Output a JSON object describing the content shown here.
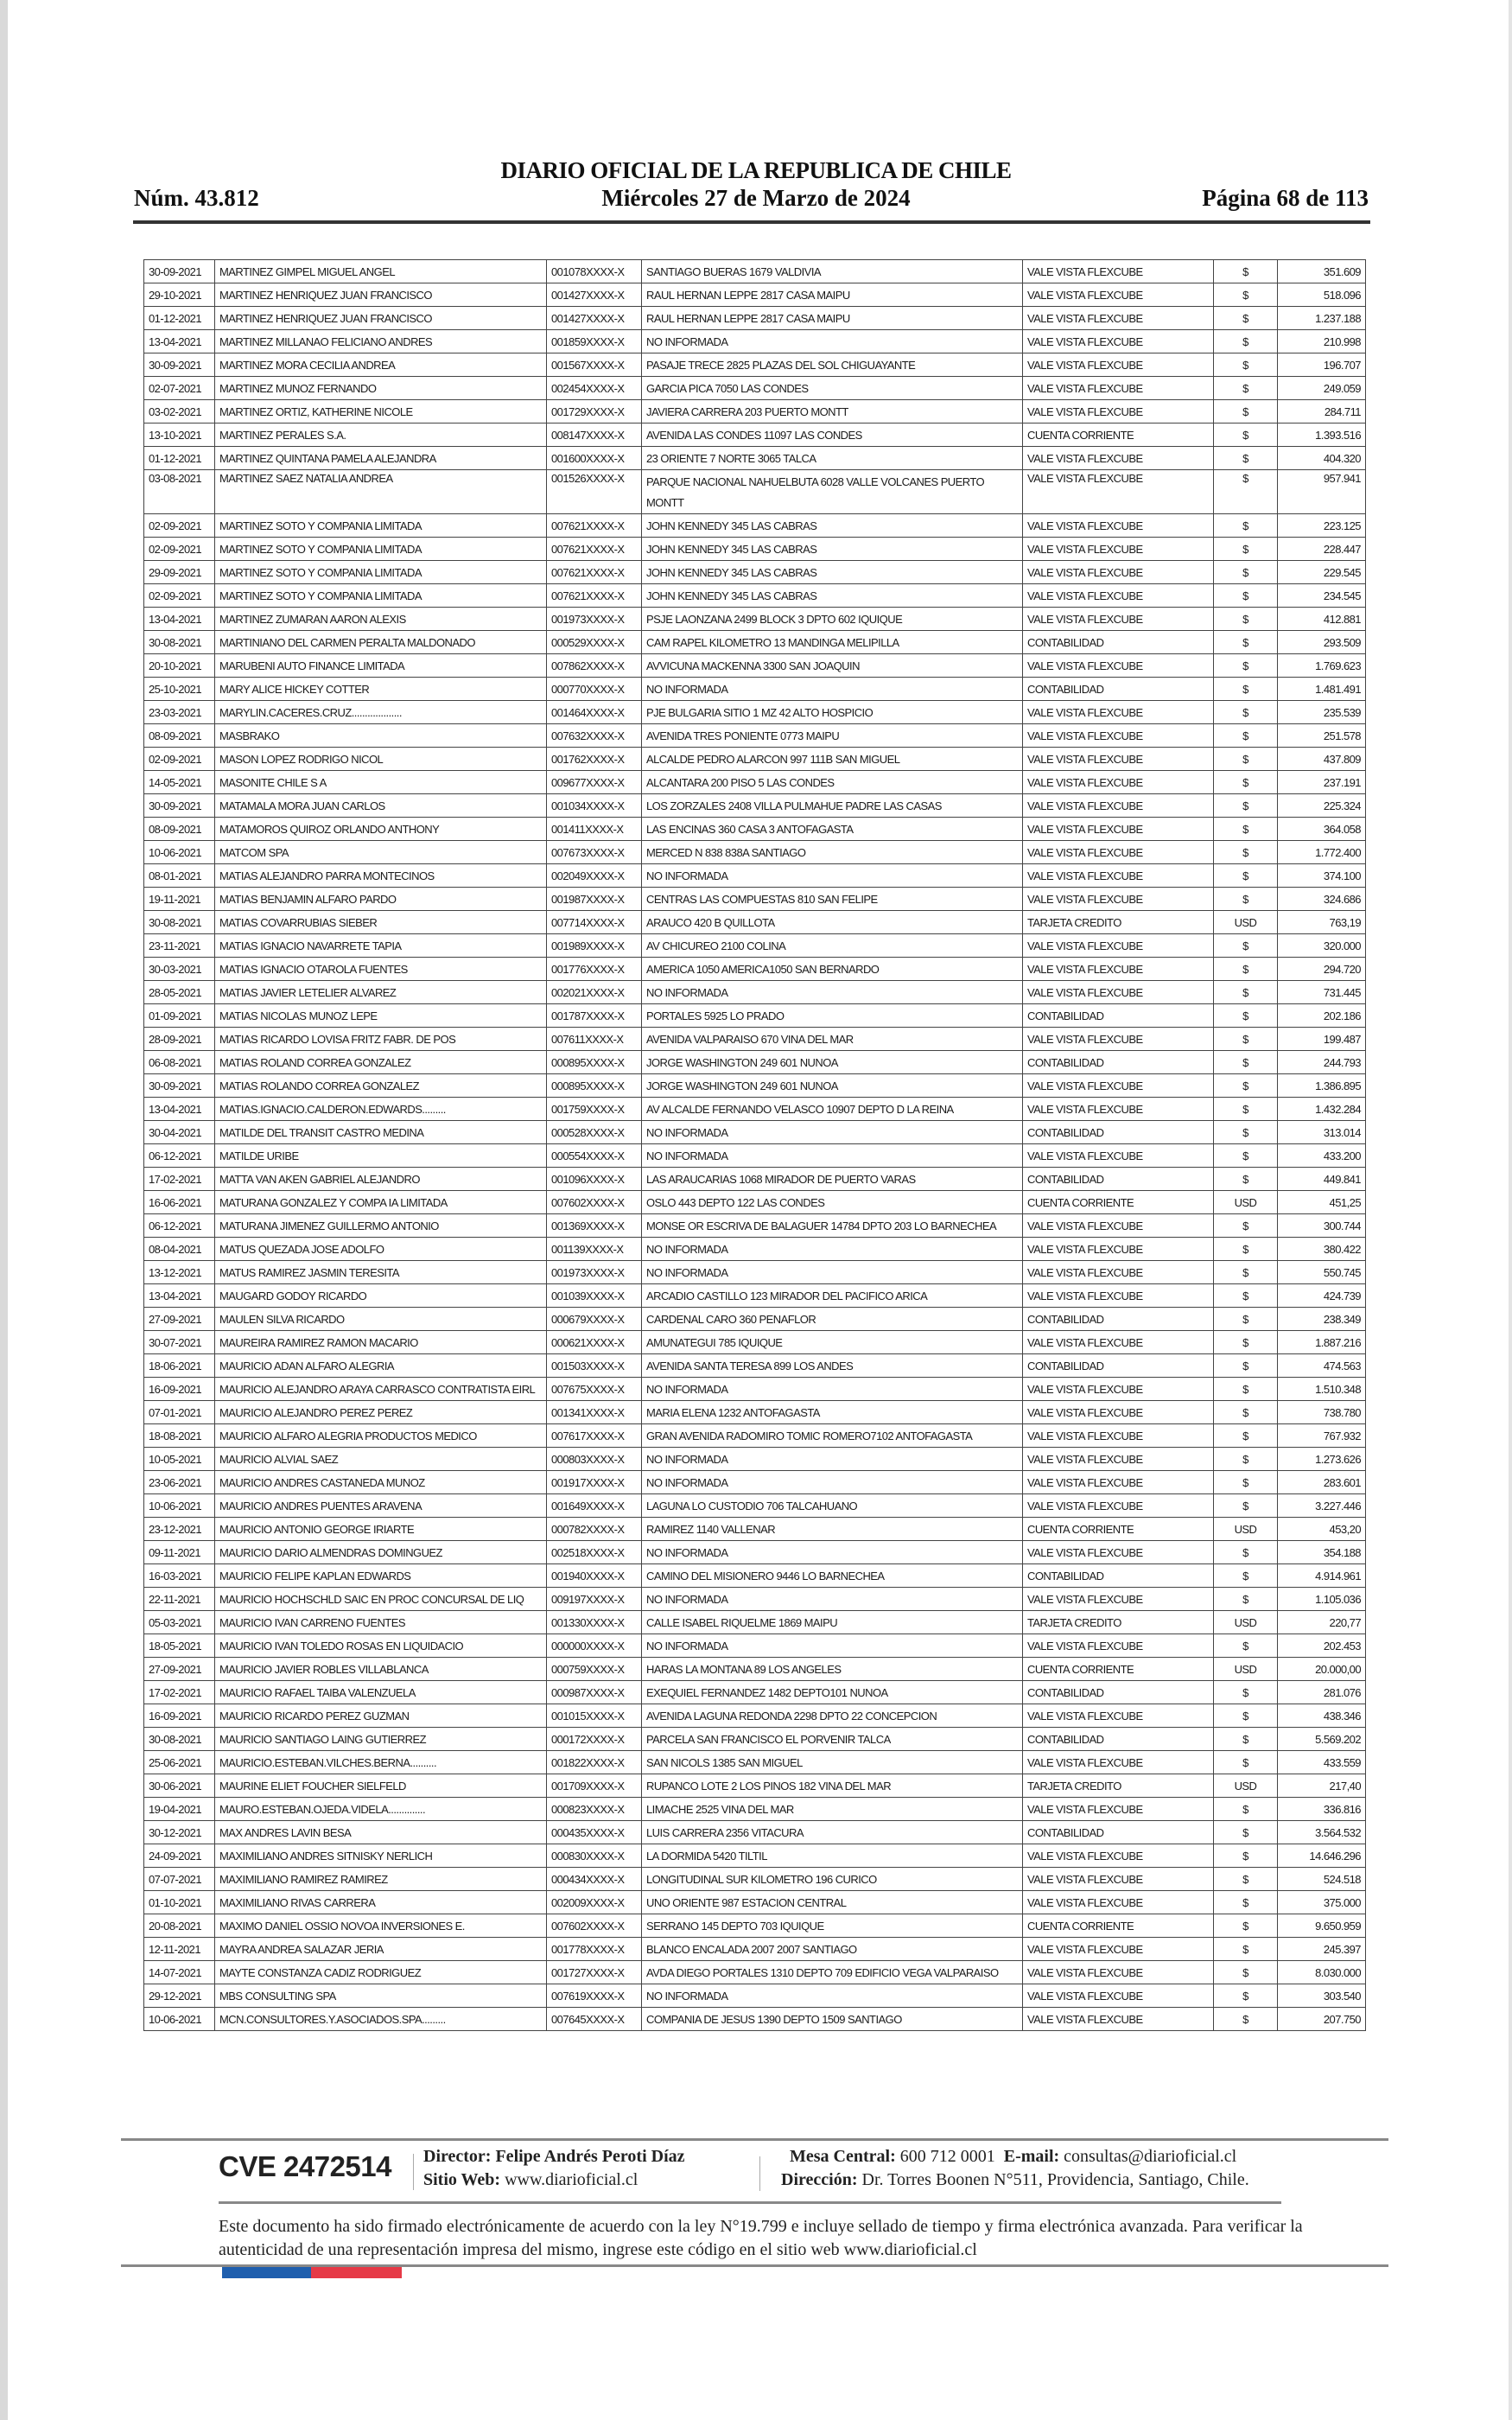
{
  "header": {
    "title": "DIARIO OFICIAL DE LA REPUBLICA DE CHILE",
    "number": "Núm. 43.812",
    "date": "Miércoles 27 de Marzo de 2024",
    "page": "Página 68 de 113"
  },
  "rows": [
    [
      "30-09-2021",
      "MARTINEZ GIMPEL MIGUEL ANGEL",
      "001078XXXX-X",
      "SANTIAGO BUERAS 1679 VALDIVIA",
      "VALE VISTA FLEXCUBE",
      "$",
      "351.609"
    ],
    [
      "29-10-2021",
      "MARTINEZ HENRIQUEZ JUAN FRANCISCO",
      "001427XXXX-X",
      "RAUL HERNAN LEPPE 2817 CASA MAIPU",
      "VALE VISTA FLEXCUBE",
      "$",
      "518.096"
    ],
    [
      "01-12-2021",
      "MARTINEZ HENRIQUEZ JUAN FRANCISCO",
      "001427XXXX-X",
      "RAUL HERNAN LEPPE 2817 CASA MAIPU",
      "VALE VISTA FLEXCUBE",
      "$",
      "1.237.188"
    ],
    [
      "13-04-2021",
      "MARTINEZ MILLANAO FELICIANO ANDRES",
      "001859XXXX-X",
      "NO INFORMADA",
      "VALE VISTA FLEXCUBE",
      "$",
      "210.998"
    ],
    [
      "30-09-2021",
      "MARTINEZ MORA CECILIA ANDREA",
      "001567XXXX-X",
      "PASAJE TRECE 2825 PLAZAS DEL SOL CHIGUAYANTE",
      "VALE VISTA FLEXCUBE",
      "$",
      "196.707"
    ],
    [
      "02-07-2021",
      "MARTINEZ MUNOZ FERNANDO",
      "002454XXXX-X",
      "GARCIA PICA 7050 LAS CONDES",
      "VALE VISTA FLEXCUBE",
      "$",
      "249.059"
    ],
    [
      "03-02-2021",
      "MARTINEZ ORTIZ, KATHERINE NICOLE",
      "001729XXXX-X",
      "JAVIERA CARRERA 203 PUERTO MONTT",
      "VALE VISTA FLEXCUBE",
      "$",
      "284.711"
    ],
    [
      "13-10-2021",
      "MARTINEZ PERALES S.A.",
      "008147XXXX-X",
      "AVENIDA LAS CONDES 11097 LAS CONDES",
      "CUENTA CORRIENTE",
      "$",
      "1.393.516"
    ],
    [
      "01-12-2021",
      "MARTINEZ QUINTANA PAMELA ALEJANDRA",
      "001600XXXX-X",
      "23 ORIENTE 7 NORTE 3065 TALCA",
      "VALE VISTA FLEXCUBE",
      "$",
      "404.320"
    ],
    [
      "03-08-2021",
      "MARTINEZ SAEZ NATALIA ANDREA",
      "001526XXXX-X",
      "PARQUE NACIONAL NAHUELBUTA 6028 VALLE VOLCANES PUERTO MONTT",
      "VALE VISTA FLEXCUBE",
      "$",
      "957.941"
    ],
    [
      "02-09-2021",
      "MARTINEZ SOTO Y COMPANIA LIMITADA",
      "007621XXXX-X",
      "JOHN KENNEDY 345 LAS CABRAS",
      "VALE VISTA FLEXCUBE",
      "$",
      "223.125"
    ],
    [
      "02-09-2021",
      "MARTINEZ SOTO Y COMPANIA LIMITADA",
      "007621XXXX-X",
      "JOHN KENNEDY 345 LAS CABRAS",
      "VALE VISTA FLEXCUBE",
      "$",
      "228.447"
    ],
    [
      "29-09-2021",
      "MARTINEZ SOTO Y COMPANIA LIMITADA",
      "007621XXXX-X",
      "JOHN KENNEDY 345 LAS CABRAS",
      "VALE VISTA FLEXCUBE",
      "$",
      "229.545"
    ],
    [
      "02-09-2021",
      "MARTINEZ SOTO Y COMPANIA LIMITADA",
      "007621XXXX-X",
      "JOHN KENNEDY 345 LAS CABRAS",
      "VALE VISTA FLEXCUBE",
      "$",
      "234.545"
    ],
    [
      "13-04-2021",
      "MARTINEZ ZUMARAN AARON ALEXIS",
      "001973XXXX-X",
      "PSJE LAONZANA 2499 BLOCK 3 DPTO 602 IQUIQUE",
      "VALE VISTA FLEXCUBE",
      "$",
      "412.881"
    ],
    [
      "30-08-2021",
      "MARTINIANO DEL CARMEN PERALTA MALDONADO",
      "000529XXXX-X",
      "CAM RAPEL KILOMETRO 13 MANDINGA MELIPILLA",
      "CONTABILIDAD",
      "$",
      "293.509"
    ],
    [
      "20-10-2021",
      "MARUBENI AUTO FINANCE LIMITADA",
      "007862XXXX-X",
      "AVVICUNA MACKENNA 3300 SAN JOAQUIN",
      "VALE VISTA FLEXCUBE",
      "$",
      "1.769.623"
    ],
    [
      "25-10-2021",
      "MARY ALICE HICKEY COTTER",
      "000770XXXX-X",
      "NO INFORMADA",
      "CONTABILIDAD",
      "$",
      "1.481.491"
    ],
    [
      "23-03-2021",
      "MARYLIN.CACERES.CRUZ...................",
      "001464XXXX-X",
      "PJE BULGARIA SITIO 1 MZ 42 ALTO HOSPICIO",
      "VALE VISTA FLEXCUBE",
      "$",
      "235.539"
    ],
    [
      "08-09-2021",
      "MASBRAKO",
      "007632XXXX-X",
      "AVENIDA TRES PONIENTE 0773 MAIPU",
      "VALE VISTA FLEXCUBE",
      "$",
      "251.578"
    ],
    [
      "02-09-2021",
      "MASON LOPEZ RODRIGO NICOL",
      "001762XXXX-X",
      "ALCALDE PEDRO ALARCON 997 111B SAN MIGUEL",
      "VALE VISTA FLEXCUBE",
      "$",
      "437.809"
    ],
    [
      "14-05-2021",
      "MASONITE CHILE S A",
      "009677XXXX-X",
      "ALCANTARA 200 PISO 5 LAS CONDES",
      "VALE VISTA FLEXCUBE",
      "$",
      "237.191"
    ],
    [
      "30-09-2021",
      "MATAMALA MORA JUAN CARLOS",
      "001034XXXX-X",
      "LOS ZORZALES 2408 VILLA PULMAHUE PADRE LAS CASAS",
      "VALE VISTA FLEXCUBE",
      "$",
      "225.324"
    ],
    [
      "08-09-2021",
      "MATAMOROS QUIROZ ORLANDO ANTHONY",
      "001411XXXX-X",
      "LAS ENCINAS 360 CASA 3 ANTOFAGASTA",
      "VALE VISTA FLEXCUBE",
      "$",
      "364.058"
    ],
    [
      "10-06-2021",
      "MATCOM SPA",
      "007673XXXX-X",
      "MERCED N 838 838A SANTIAGO",
      "VALE VISTA FLEXCUBE",
      "$",
      "1.772.400"
    ],
    [
      "08-01-2021",
      "MATIAS ALEJANDRO PARRA MONTECINOS",
      "002049XXXX-X",
      "NO INFORMADA",
      "VALE VISTA FLEXCUBE",
      "$",
      "374.100"
    ],
    [
      "19-11-2021",
      "MATIAS BENJAMIN ALFARO PARDO",
      "001987XXXX-X",
      "CENTRAS LAS COMPUESTAS 810 SAN FELIPE",
      "VALE VISTA FLEXCUBE",
      "$",
      "324.686"
    ],
    [
      "30-08-2021",
      "MATIAS COVARRUBIAS SIEBER",
      "007714XXXX-X",
      "ARAUCO 420 B QUILLOTA",
      "TARJETA CREDITO",
      "USD",
      "763,19"
    ],
    [
      "23-11-2021",
      "MATIAS IGNACIO NAVARRETE TAPIA",
      "001989XXXX-X",
      "AV CHICUREO 2100 COLINA",
      "VALE VISTA FLEXCUBE",
      "$",
      "320.000"
    ],
    [
      "30-03-2021",
      "MATIAS IGNACIO OTAROLA FUENTES",
      "001776XXXX-X",
      "AMERICA 1050 AMERICA1050 SAN BERNARDO",
      "VALE VISTA FLEXCUBE",
      "$",
      "294.720"
    ],
    [
      "28-05-2021",
      "MATIAS JAVIER LETELIER ALVAREZ",
      "002021XXXX-X",
      "NO INFORMADA",
      "VALE VISTA FLEXCUBE",
      "$",
      "731.445"
    ],
    [
      "01-09-2021",
      "MATIAS NICOLAS MUNOZ LEPE",
      "001787XXXX-X",
      "PORTALES 5925 LO PRADO",
      "CONTABILIDAD",
      "$",
      "202.186"
    ],
    [
      "28-09-2021",
      "MATIAS RICARDO LOVISA FRITZ FABR. DE POS",
      "007611XXXX-X",
      "AVENIDA VALPARAISO 670 VINA DEL MAR",
      "VALE VISTA FLEXCUBE",
      "$",
      "199.487"
    ],
    [
      "06-08-2021",
      "MATIAS ROLAND CORREA GONZALEZ",
      "000895XXXX-X",
      "JORGE WASHINGTON 249 601 NUNOA",
      "CONTABILIDAD",
      "$",
      "244.793"
    ],
    [
      "30-09-2021",
      "MATIAS ROLANDO CORREA GONZALEZ",
      "000895XXXX-X",
      "JORGE WASHINGTON 249 601 NUNOA",
      "VALE VISTA FLEXCUBE",
      "$",
      "1.386.895"
    ],
    [
      "13-04-2021",
      "MATIAS.IGNACIO.CALDERON.EDWARDS.........",
      "001759XXXX-X",
      "AV ALCALDE FERNANDO VELASCO 10907 DEPTO D LA REINA",
      "VALE VISTA FLEXCUBE",
      "$",
      "1.432.284"
    ],
    [
      "30-04-2021",
      "MATILDE DEL TRANSIT CASTRO MEDINA",
      "000528XXXX-X",
      "NO INFORMADA",
      "CONTABILIDAD",
      "$",
      "313.014"
    ],
    [
      "06-12-2021",
      "MATILDE URIBE",
      "000554XXXX-X",
      "NO INFORMADA",
      "VALE VISTA FLEXCUBE",
      "$",
      "433.200"
    ],
    [
      "17-02-2021",
      "MATTA VAN AKEN GABRIEL ALEJANDRO",
      "001096XXXX-X",
      "LAS ARAUCARIAS 1068 MIRADOR DE PUERTO VARAS",
      "CONTABILIDAD",
      "$",
      "449.841"
    ],
    [
      "16-06-2021",
      "MATURANA GONZALEZ Y COMPA IA LIMITADA",
      "007602XXXX-X",
      "OSLO 443 DEPTO 122 LAS CONDES",
      "CUENTA CORRIENTE",
      "USD",
      "451,25"
    ],
    [
      "06-12-2021",
      "MATURANA JIMENEZ GUILLERMO ANTONIO",
      "001369XXXX-X",
      "MONSE OR ESCRIVA DE BALAGUER 14784 DPTO 203 LO BARNECHEA",
      "VALE VISTA FLEXCUBE",
      "$",
      "300.744"
    ],
    [
      "08-04-2021",
      "MATUS QUEZADA JOSE ADOLFO",
      "001139XXXX-X",
      "NO INFORMADA",
      "VALE VISTA FLEXCUBE",
      "$",
      "380.422"
    ],
    [
      "13-12-2021",
      "MATUS RAMIREZ JASMIN TERESITA",
      "001973XXXX-X",
      "NO INFORMADA",
      "VALE VISTA FLEXCUBE",
      "$",
      "550.745"
    ],
    [
      "13-04-2021",
      "MAUGARD GODOY RICARDO",
      "001039XXXX-X",
      "ARCADIO CASTILLO 123 MIRADOR DEL PACIFICO ARICA",
      "VALE VISTA FLEXCUBE",
      "$",
      "424.739"
    ],
    [
      "27-09-2021",
      "MAULEN SILVA RICARDO",
      "000679XXXX-X",
      "CARDENAL CARO 360 PENAFLOR",
      "CONTABILIDAD",
      "$",
      "238.349"
    ],
    [
      "30-07-2021",
      "MAUREIRA RAMIREZ RAMON MACARIO",
      "000621XXXX-X",
      "AMUNATEGUI 785 IQUIQUE",
      "VALE VISTA FLEXCUBE",
      "$",
      "1.887.216"
    ],
    [
      "18-06-2021",
      "MAURICIO ADAN ALFARO ALEGRIA",
      "001503XXXX-X",
      "AVENIDA SANTA TERESA 899 LOS ANDES",
      "CONTABILIDAD",
      "$",
      "474.563"
    ],
    [
      "16-09-2021",
      "MAURICIO ALEJANDRO ARAYA CARRASCO CONTRATISTA EIRL",
      "007675XXXX-X",
      "NO INFORMADA",
      "VALE VISTA FLEXCUBE",
      "$",
      "1.510.348"
    ],
    [
      "07-01-2021",
      "MAURICIO ALEJANDRO PEREZ PEREZ",
      "001341XXXX-X",
      "MARIA ELENA 1232 ANTOFAGASTA",
      "VALE VISTA FLEXCUBE",
      "$",
      "738.780"
    ],
    [
      "18-08-2021",
      "MAURICIO ALFARO ALEGRIA PRODUCTOS MEDICO",
      "007617XXXX-X",
      "GRAN AVENIDA RADOMIRO TOMIC ROMERO7102 ANTOFAGASTA",
      "VALE VISTA FLEXCUBE",
      "$",
      "767.932"
    ],
    [
      "10-05-2021",
      "MAURICIO ALVIAL SAEZ",
      "000803XXXX-X",
      "NO INFORMADA",
      "VALE VISTA FLEXCUBE",
      "$",
      "1.273.626"
    ],
    [
      "23-06-2021",
      "MAURICIO ANDRES CASTANEDA MUNOZ",
      "001917XXXX-X",
      "NO INFORMADA",
      "VALE VISTA FLEXCUBE",
      "$",
      "283.601"
    ],
    [
      "10-06-2021",
      "MAURICIO ANDRES PUENTES ARAVENA",
      "001649XXXX-X",
      "LAGUNA LO CUSTODIO 706 TALCAHUANO",
      "VALE VISTA FLEXCUBE",
      "$",
      "3.227.446"
    ],
    [
      "23-12-2021",
      "MAURICIO ANTONIO GEORGE IRIARTE",
      "000782XXXX-X",
      "RAMIREZ 1140 VALLENAR",
      "CUENTA CORRIENTE",
      "USD",
      "453,20"
    ],
    [
      "09-11-2021",
      "MAURICIO DARIO ALMENDRAS DOMINGUEZ",
      "002518XXXX-X",
      "NO INFORMADA",
      "VALE VISTA FLEXCUBE",
      "$",
      "354.188"
    ],
    [
      "16-03-2021",
      "MAURICIO FELIPE KAPLAN EDWARDS",
      "001940XXXX-X",
      "CAMINO DEL MISIONERO 9446 LO BARNECHEA",
      "CONTABILIDAD",
      "$",
      "4.914.961"
    ],
    [
      "22-11-2021",
      "MAURICIO HOCHSCHLD SAIC EN PROC CONCURSAL DE LIQ",
      "009197XXXX-X",
      "NO INFORMADA",
      "VALE VISTA FLEXCUBE",
      "$",
      "1.105.036"
    ],
    [
      "05-03-2021",
      "MAURICIO IVAN CARRENO FUENTES",
      "001330XXXX-X",
      "CALLE ISABEL RIQUELME 1869 MAIPU",
      "TARJETA CREDITO",
      "USD",
      "220,77"
    ],
    [
      "18-05-2021",
      "MAURICIO IVAN TOLEDO ROSAS EN LIQUIDACIO",
      "000000XXXX-X",
      "NO INFORMADA",
      "VALE VISTA FLEXCUBE",
      "$",
      "202.453"
    ],
    [
      "27-09-2021",
      "MAURICIO JAVIER ROBLES VILLABLANCA",
      "000759XXXX-X",
      "HARAS LA MONTANA 89 LOS ANGELES",
      "CUENTA CORRIENTE",
      "USD",
      "20.000,00"
    ],
    [
      "17-02-2021",
      "MAURICIO RAFAEL TAIBA VALENZUELA",
      "000987XXXX-X",
      "EXEQUIEL FERNANDEZ 1482 DEPTO101 NUNOA",
      "CONTABILIDAD",
      "$",
      "281.076"
    ],
    [
      "16-09-2021",
      "MAURICIO RICARDO PEREZ GUZMAN",
      "001015XXXX-X",
      "AVENIDA LAGUNA REDONDA 2298 DPTO 22 CONCEPCION",
      "VALE VISTA FLEXCUBE",
      "$",
      "438.346"
    ],
    [
      "30-08-2021",
      "MAURICIO SANTIAGO LAING GUTIERREZ",
      "000172XXXX-X",
      "PARCELA SAN FRANCISCO EL PORVENIR TALCA",
      "CONTABILIDAD",
      "$",
      "5.569.202"
    ],
    [
      "25-06-2021",
      "MAURICIO.ESTEBAN.VILCHES.BERNA..........",
      "001822XXXX-X",
      "SAN NICOLS 1385 SAN MIGUEL",
      "VALE VISTA FLEXCUBE",
      "$",
      "433.559"
    ],
    [
      "30-06-2021",
      "MAURINE ELIET FOUCHER SIELFELD",
      "001709XXXX-X",
      "RUPANCO LOTE 2 LOS PINOS 182 VINA DEL MAR",
      "TARJETA CREDITO",
      "USD",
      "217,40"
    ],
    [
      "19-04-2021",
      "MAURO.ESTEBAN.OJEDA.VIDELA..............",
      "000823XXXX-X",
      "LIMACHE 2525 VINA DEL MAR",
      "VALE VISTA FLEXCUBE",
      "$",
      "336.816"
    ],
    [
      "30-12-2021",
      "MAX ANDRES LAVIN BESA",
      "000435XXXX-X",
      "LUIS CARRERA 2356 VITACURA",
      "CONTABILIDAD",
      "$",
      "3.564.532"
    ],
    [
      "24-09-2021",
      "MAXIMILIANO ANDRES SITNISKY NERLICH",
      "000830XXXX-X",
      "LA DORMIDA 5420 TILTIL",
      "VALE VISTA FLEXCUBE",
      "$",
      "14.646.296"
    ],
    [
      "07-07-2021",
      "MAXIMILIANO RAMIREZ RAMIREZ",
      "000434XXXX-X",
      "LONGITUDINAL SUR KILOMETRO 196 CURICO",
      "VALE VISTA FLEXCUBE",
      "$",
      "524.518"
    ],
    [
      "01-10-2021",
      "MAXIMILIANO RIVAS CARRERA",
      "002009XXXX-X",
      "UNO ORIENTE 987 ESTACION CENTRAL",
      "VALE VISTA FLEXCUBE",
      "$",
      "375.000"
    ],
    [
      "20-08-2021",
      "MAXIMO DANIEL OSSIO NOVOA INVERSIONES E.",
      "007602XXXX-X",
      "SERRANO 145 DEPTO 703 IQUIQUE",
      "CUENTA CORRIENTE",
      "$",
      "9.650.959"
    ],
    [
      "12-11-2021",
      "MAYRA ANDREA SALAZAR JERIA",
      "001778XXXX-X",
      "BLANCO ENCALADA 2007 2007 SANTIAGO",
      "VALE VISTA FLEXCUBE",
      "$",
      "245.397"
    ],
    [
      "14-07-2021",
      "MAYTE CONSTANZA CADIZ RODRIGUEZ",
      "001727XXXX-X",
      "AVDA DIEGO PORTALES 1310 DEPTO 709 EDIFICIO VEGA VALPARAISO",
      "VALE VISTA FLEXCUBE",
      "$",
      "8.030.000"
    ],
    [
      "29-12-2021",
      "MBS CONSULTING SPA",
      "007619XXXX-X",
      "NO INFORMADA",
      "VALE VISTA FLEXCUBE",
      "$",
      "303.540"
    ],
    [
      "10-06-2021",
      "MCN.CONSULTORES.Y.ASOCIADOS.SPA.........",
      "007645XXXX-X",
      "COMPANIA DE JESUS 1390 DEPTO 1509 SANTIAGO",
      "VALE VISTA FLEXCUBE",
      "$",
      "207.750"
    ]
  ],
  "footer": {
    "cve": "CVE 2472514",
    "director_label": "Director:",
    "director": "Felipe Andrés Peroti Díaz",
    "web_label": "Sitio Web:",
    "web": "www.diarioficial.cl",
    "phone_label": "Mesa Central:",
    "phone": "600 712 0001",
    "email_label": "E-mail:",
    "email": "consultas@diarioficial.cl",
    "address_label": "Dirección:",
    "address": "Dr. Torres Boonen N°511, Providencia, Santiago, Chile.",
    "legal": "Este documento ha sido firmado electrónicamente de acuerdo con la ley N°19.799 e incluye sellado de tiempo y firma electrónica avanzada. Para verificar la autenticidad de una representación impresa del mismo, ingrese este código en el sitio web www.diarioficial.cl"
  },
  "colors": {
    "flag_blue": "#1f5fae",
    "flag_red": "#e63a47"
  }
}
